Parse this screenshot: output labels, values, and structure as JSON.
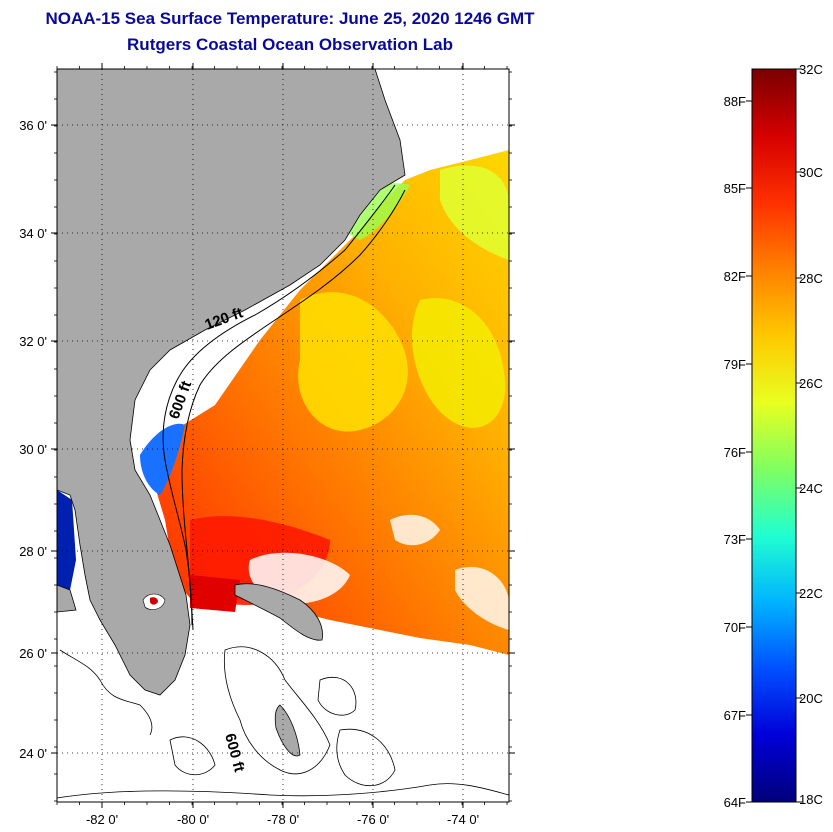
{
  "title": {
    "line1": "NOAA-15 Sea Surface Temperature:  June 25, 2020 1246 GMT",
    "line2": "Rutgers Coastal Ocean Observation Lab"
  },
  "map": {
    "lat_ticks": [
      "36 0'",
      "34 0'",
      "32 0'",
      "30 0'",
      "28 0'",
      "26 0'",
      "24 0'"
    ],
    "lon_ticks": [
      "-82 0'",
      "-80 0'",
      "-78 0'",
      "-76 0'",
      "-74 0'"
    ],
    "contour_labels": [
      "120 ft",
      "600 ft",
      "600 ft"
    ],
    "colors": {
      "land": "#a9a9a9",
      "ocean_bg": "#ffffff",
      "grid": "#000000"
    }
  },
  "colorbar": {
    "celsius_labels": [
      "32C",
      "30C",
      "28C",
      "26C",
      "24C",
      "22C",
      "20C",
      "18C"
    ],
    "fahrenheit_labels": [
      "88F",
      "85F",
      "82F",
      "79F",
      "76F",
      "73F",
      "70F",
      "67F",
      "64F"
    ],
    "gradient": [
      "#7a0000",
      "#d40000",
      "#ff3000",
      "#ff8000",
      "#ffc800",
      "#e8ff20",
      "#80ff60",
      "#20ffd0",
      "#00b4ff",
      "#0050ff",
      "#0000d8",
      "#00007a"
    ]
  }
}
